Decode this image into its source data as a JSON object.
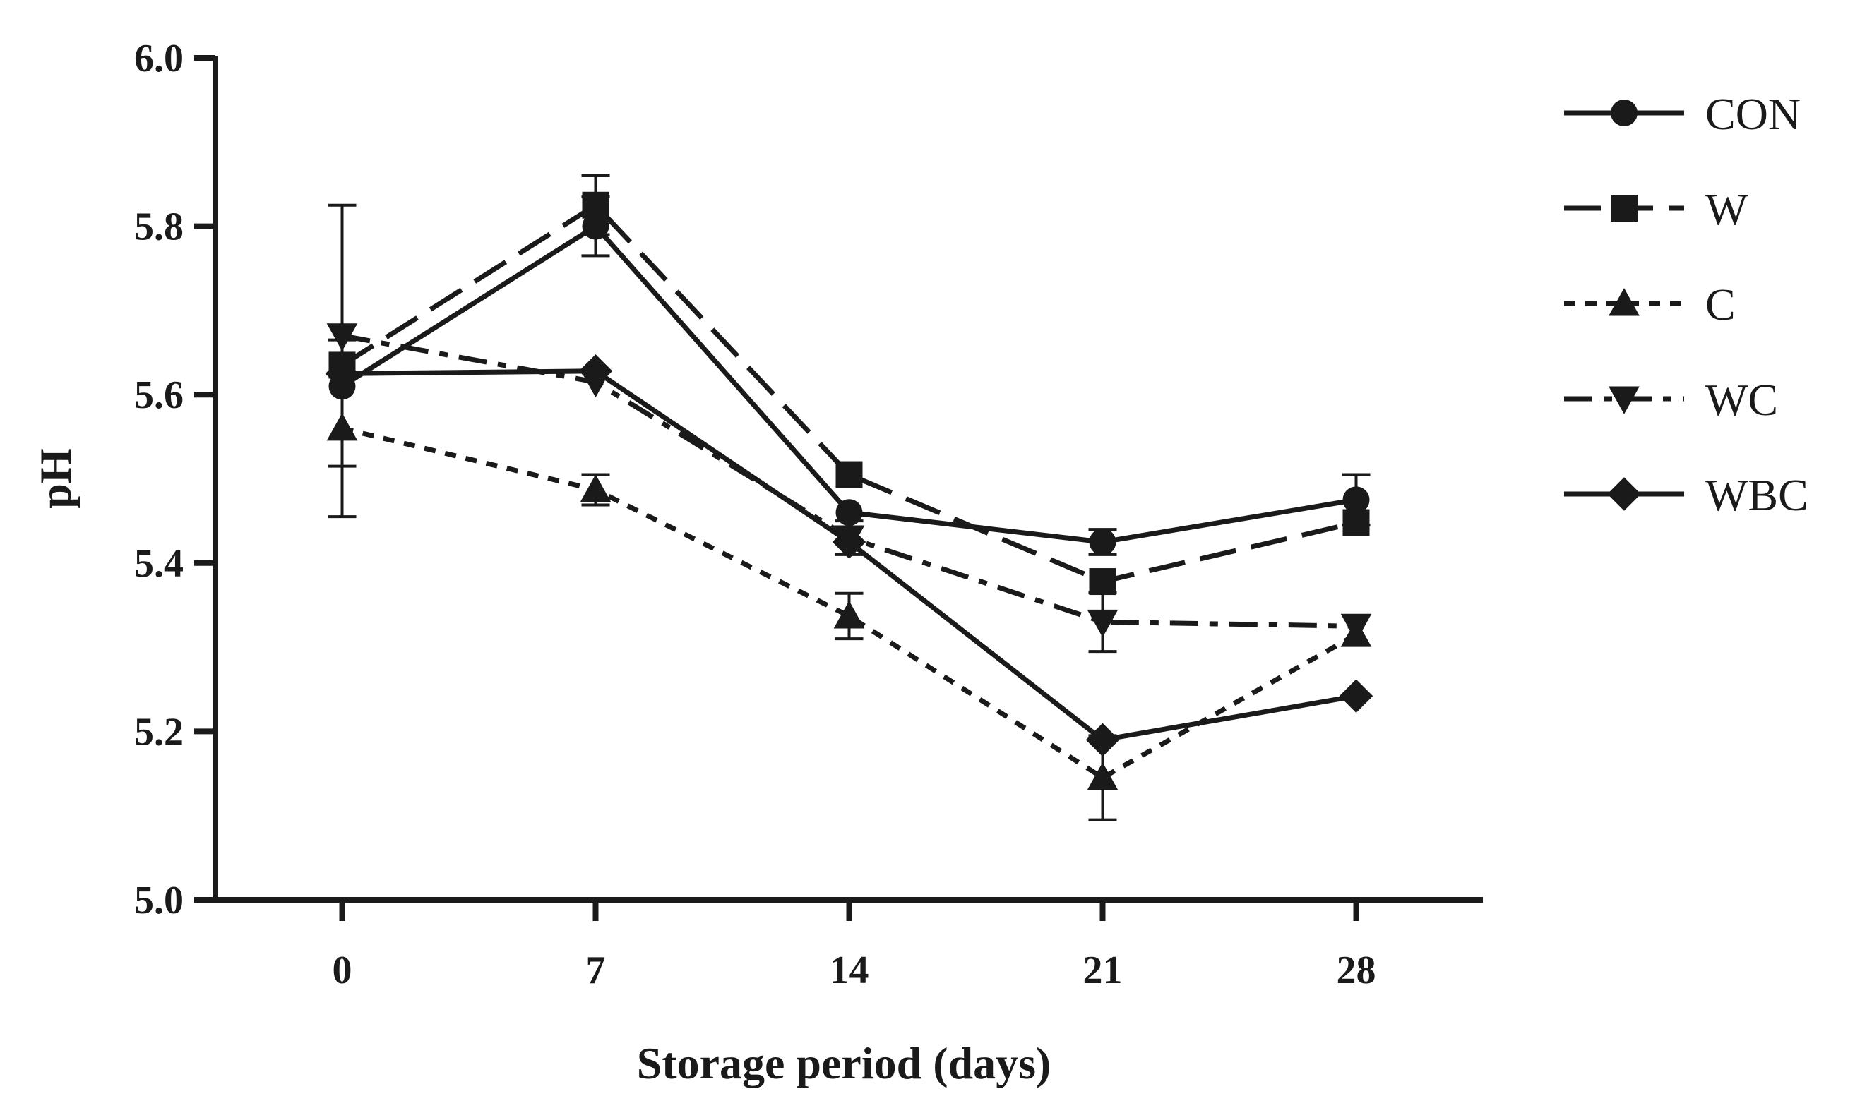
{
  "chart_data": {
    "type": "line",
    "title": "",
    "xlabel": "Storage period (days)",
    "ylabel": "pH",
    "x": [
      0,
      7,
      14,
      21,
      28
    ],
    "x_tick_labels": [
      "0",
      "7",
      "14",
      "21",
      "28"
    ],
    "xlim": [
      -3.5,
      31.5
    ],
    "ylim": [
      5.0,
      6.0
    ],
    "y_ticks": [
      5.0,
      5.2,
      5.4,
      5.6,
      5.8,
      6.0
    ],
    "y_tick_labels": [
      "5.0",
      "5.2",
      "5.4",
      "5.6",
      "5.8",
      "6.0"
    ],
    "grid": false,
    "legend_position": "right",
    "line_color": "#1a1a1a",
    "series": [
      {
        "name": "CON",
        "marker": "circle",
        "line_style": "solid",
        "values": [
          5.61,
          5.8,
          5.46,
          5.425,
          5.475
        ],
        "errors": [
          0,
          0.035,
          0,
          0.015,
          0.03
        ]
      },
      {
        "name": "W",
        "marker": "square",
        "line_style": "long-dash",
        "values": [
          5.635,
          5.825,
          5.505,
          5.378,
          5.448
        ],
        "errors": [
          0,
          0.035,
          0,
          0,
          0
        ]
      },
      {
        "name": "C",
        "marker": "triangle-up",
        "line_style": "short-dash",
        "values": [
          5.56,
          5.487,
          5.337,
          5.145,
          5.315
        ],
        "errors": [
          0.105,
          0.018,
          0.027,
          0.05,
          0
        ]
      },
      {
        "name": "WC",
        "marker": "triangle-down",
        "line_style": "dash-dot",
        "values": [
          5.67,
          5.615,
          5.43,
          5.33,
          5.325
        ],
        "errors": [
          0.155,
          0,
          0.02,
          0.035,
          0
        ]
      },
      {
        "name": "WBC",
        "marker": "diamond",
        "line_style": "solid",
        "values": [
          5.625,
          5.628,
          5.425,
          5.19,
          5.242
        ],
        "errors": [
          0,
          0,
          0,
          0,
          0
        ]
      }
    ]
  }
}
